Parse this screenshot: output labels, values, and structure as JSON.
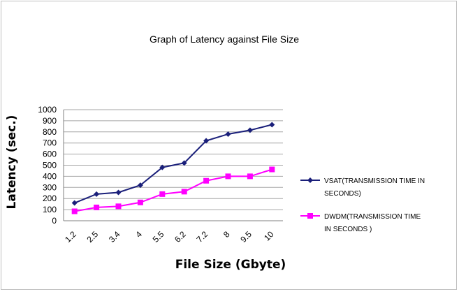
{
  "chart_data": {
    "type": "line",
    "title": "Graph of Latency against File Size",
    "xlabel": "File Size (Gbyte)",
    "ylabel": "Latency (sec.)",
    "categories": [
      "1.2",
      "2.5",
      "3.4",
      "4",
      "5.5",
      "6.2",
      "7.2",
      "8",
      "9.5",
      "10"
    ],
    "ylim": [
      0,
      1000
    ],
    "yticks": [
      0,
      100,
      200,
      300,
      400,
      500,
      600,
      700,
      800,
      900,
      1000
    ],
    "grid": true,
    "legend_position": "right",
    "series": [
      {
        "name": "VSAT(TRANSMISSION TIME IN SECONDS)",
        "legend_lines": [
          "VSAT(TRANSMISSION TIME IN",
          "SECONDS)"
        ],
        "color": "#1a1f7a",
        "marker": "diamond",
        "values": [
          160,
          240,
          255,
          320,
          480,
          520,
          720,
          780,
          815,
          865
        ]
      },
      {
        "name": "DWDM(TRANSMISSION TIME IN SECONDS )",
        "legend_lines": [
          "DWDM(TRANSMISSION TIME",
          "IN SECONDS )"
        ],
        "color": "#ff00ff",
        "marker": "square",
        "values": [
          85,
          120,
          130,
          165,
          240,
          262,
          360,
          400,
          400,
          462
        ]
      }
    ]
  }
}
